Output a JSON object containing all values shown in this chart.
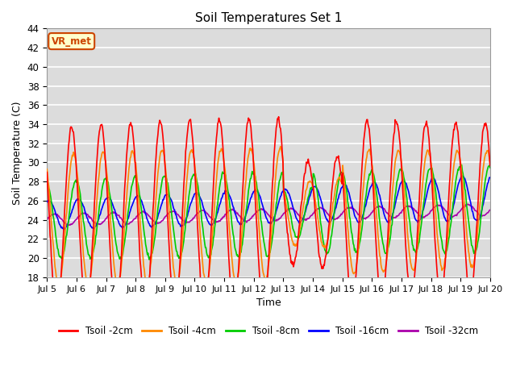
{
  "title": "Soil Temperatures Set 1",
  "xlabel": "Time",
  "ylabel": "Soil Temperature (C)",
  "ylim": [
    18,
    44
  ],
  "yticks": [
    18,
    20,
    22,
    24,
    26,
    28,
    30,
    32,
    34,
    36,
    38,
    40,
    42,
    44
  ],
  "annotation_text": "VR_met",
  "annotation_color": "#cc4400",
  "colors": {
    "Tsoil -2cm": "#ff0000",
    "Tsoil -4cm": "#ff8800",
    "Tsoil -8cm": "#00cc00",
    "Tsoil -16cm": "#0000ff",
    "Tsoil -32cm": "#aa00aa"
  },
  "background_color": "#dcdcdc",
  "grid_color": "#ffffff",
  "legend_labels": [
    "Tsoil -2cm",
    "Tsoil -4cm",
    "Tsoil -8cm",
    "Tsoil -16cm",
    "Tsoil -32cm"
  ]
}
